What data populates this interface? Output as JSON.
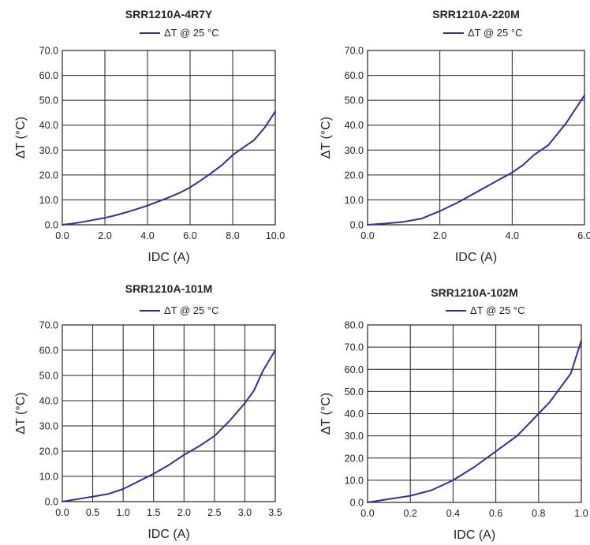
{
  "colors": {
    "series": "#2e3192",
    "grid": "#231f20",
    "text": "#231f20"
  },
  "chart_data": [
    {
      "type": "line",
      "title": "SRR1210A-4R7Y",
      "xlabel": "IDC (A)",
      "ylabel": "ΔT (°C)",
      "xlim": [
        0,
        10
      ],
      "ylim": [
        0,
        70
      ],
      "xticks": [
        0,
        2,
        4,
        6,
        8,
        10
      ],
      "xtick_labels": [
        "0.0",
        "2.0",
        "4.0",
        "6.0",
        "8.0",
        "10.0"
      ],
      "yticks": [
        0,
        10,
        20,
        30,
        40,
        50,
        60,
        70
      ],
      "ytick_labels": [
        "0.0",
        "10.0",
        "20.0",
        "30.0",
        "40.0",
        "50.0",
        "60.0",
        "70.0"
      ],
      "grid": true,
      "legend_position": "top-center",
      "series": [
        {
          "name": "ΔT @ 25 °C",
          "x": [
            0,
            0.5,
            1,
            1.5,
            2,
            2.5,
            3,
            3.5,
            4,
            4.5,
            5,
            5.5,
            6,
            6.5,
            7,
            7.5,
            8,
            8.5,
            9,
            9.5,
            10
          ],
          "y": [
            0,
            0.5,
            1.2,
            2.0,
            2.8,
            3.8,
            5.0,
            6.3,
            7.7,
            9.3,
            11.0,
            12.8,
            15.0,
            17.8,
            20.8,
            24.0,
            28.0,
            31.0,
            34.0,
            39.0,
            45.5
          ]
        }
      ]
    },
    {
      "type": "line",
      "title": "SRR1210A-220M",
      "xlabel": "IDC (A)",
      "ylabel": "ΔT (°C)",
      "xlim": [
        0,
        6
      ],
      "ylim": [
        0,
        70
      ],
      "xticks": [
        0,
        2,
        4,
        6
      ],
      "xtick_labels": [
        "0.0",
        "2.0",
        "4.0",
        "6.0"
      ],
      "yticks": [
        0,
        10,
        20,
        30,
        40,
        50,
        60,
        70
      ],
      "ytick_labels": [
        "0.0",
        "10.0",
        "20.0",
        "30.0",
        "40.0",
        "50.0",
        "60.0",
        "70.0"
      ],
      "grid": true,
      "legend_position": "top-center",
      "series": [
        {
          "name": "ΔT @ 25 °C",
          "x": [
            0,
            0.5,
            1,
            1.5,
            2,
            2.5,
            3,
            3.5,
            4,
            4.3,
            4.6,
            5,
            5.5,
            6
          ],
          "y": [
            0,
            0.5,
            1.2,
            2.5,
            5.5,
            9.0,
            13.0,
            17.0,
            21.0,
            24.0,
            28.0,
            32.0,
            41.0,
            52.0
          ]
        }
      ]
    },
    {
      "type": "line",
      "title": "SRR1210A-101M",
      "xlabel": "IDC (A)",
      "ylabel": "ΔT (°C)",
      "xlim": [
        0,
        3.5
      ],
      "ylim": [
        0,
        70
      ],
      "xticks": [
        0,
        0.5,
        1,
        1.5,
        2,
        2.5,
        3,
        3.5
      ],
      "xtick_labels": [
        "0.0",
        "0.5",
        "1.0",
        "1.5",
        "2.0",
        "2.5",
        "3.0",
        "3.5"
      ],
      "yticks": [
        0,
        10,
        20,
        30,
        40,
        50,
        60,
        70
      ],
      "ytick_labels": [
        "0.0",
        "10.0",
        "20.0",
        "30.0",
        "40.0",
        "50.0",
        "60.0",
        "70.0"
      ],
      "grid": true,
      "legend_position": "top-center",
      "series": [
        {
          "name": "ΔT @ 25 °C",
          "x": [
            0,
            0.25,
            0.5,
            0.75,
            1.0,
            1.25,
            1.5,
            1.75,
            2.0,
            2.25,
            2.5,
            2.75,
            3.0,
            3.15,
            3.3,
            3.5
          ],
          "y": [
            0,
            1.0,
            2.0,
            3.0,
            5.0,
            8.0,
            11.0,
            14.5,
            18.5,
            22.0,
            26.0,
            32.0,
            39.0,
            44.0,
            52.0,
            60.0
          ]
        }
      ]
    },
    {
      "type": "line",
      "title": "SRR1210A-102M",
      "xlabel": "IDC (A)",
      "ylabel": "ΔT (°C)",
      "xlim": [
        0,
        1.0
      ],
      "ylim": [
        0,
        80
      ],
      "xticks": [
        0,
        0.2,
        0.4,
        0.6,
        0.8,
        1.0
      ],
      "xtick_labels": [
        "0.0",
        "0.2",
        "0.4",
        "0.6",
        "0.8",
        "1.0"
      ],
      "yticks": [
        0,
        10,
        20,
        30,
        40,
        50,
        60,
        70,
        80
      ],
      "ytick_labels": [
        "0.0",
        "10.0",
        "20.0",
        "30.0",
        "40.0",
        "50.0",
        "60.0",
        "70.0",
        "80.0"
      ],
      "grid": true,
      "legend_position": "top-center",
      "series": [
        {
          "name": "ΔT @ 25 °C",
          "x": [
            0,
            0.1,
            0.2,
            0.3,
            0.4,
            0.5,
            0.6,
            0.7,
            0.75,
            0.8,
            0.85,
            0.9,
            0.95,
            1.0
          ],
          "y": [
            0,
            1.5,
            3.0,
            5.5,
            10.0,
            16.0,
            23.0,
            30.0,
            35.0,
            40.0,
            45.0,
            51.5,
            58.0,
            73.0
          ]
        }
      ]
    }
  ]
}
